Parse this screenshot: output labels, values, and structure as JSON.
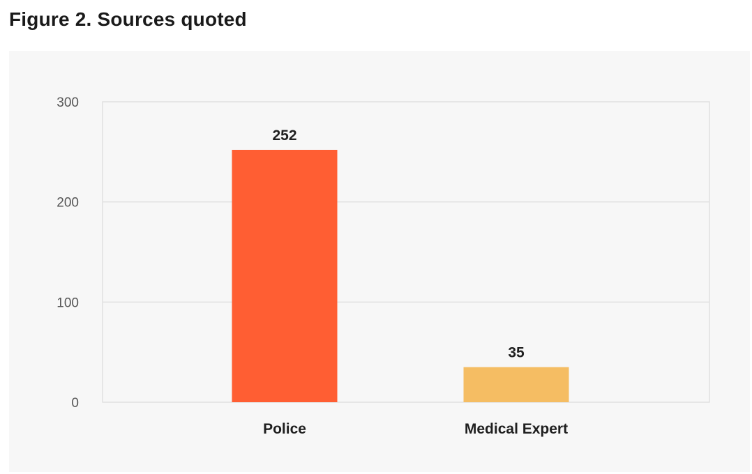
{
  "title": "Figure 2. Sources quoted",
  "chart_data": {
    "type": "bar",
    "title": "Figure 2. Sources quoted",
    "xlabel": "",
    "ylabel": "",
    "categories": [
      "Police",
      "Medical Expert"
    ],
    "values": [
      252,
      35
    ],
    "data_labels": [
      "252",
      "35"
    ],
    "bar_colors": [
      "#ff5e33",
      "#f5bd63"
    ],
    "ylim": [
      0,
      300
    ],
    "yticks": [
      0,
      100,
      200,
      300
    ],
    "ytick_labels": [
      "0",
      "100",
      "200",
      "300"
    ],
    "grid": true,
    "legend": "none",
    "background": "#f7f7f7"
  }
}
